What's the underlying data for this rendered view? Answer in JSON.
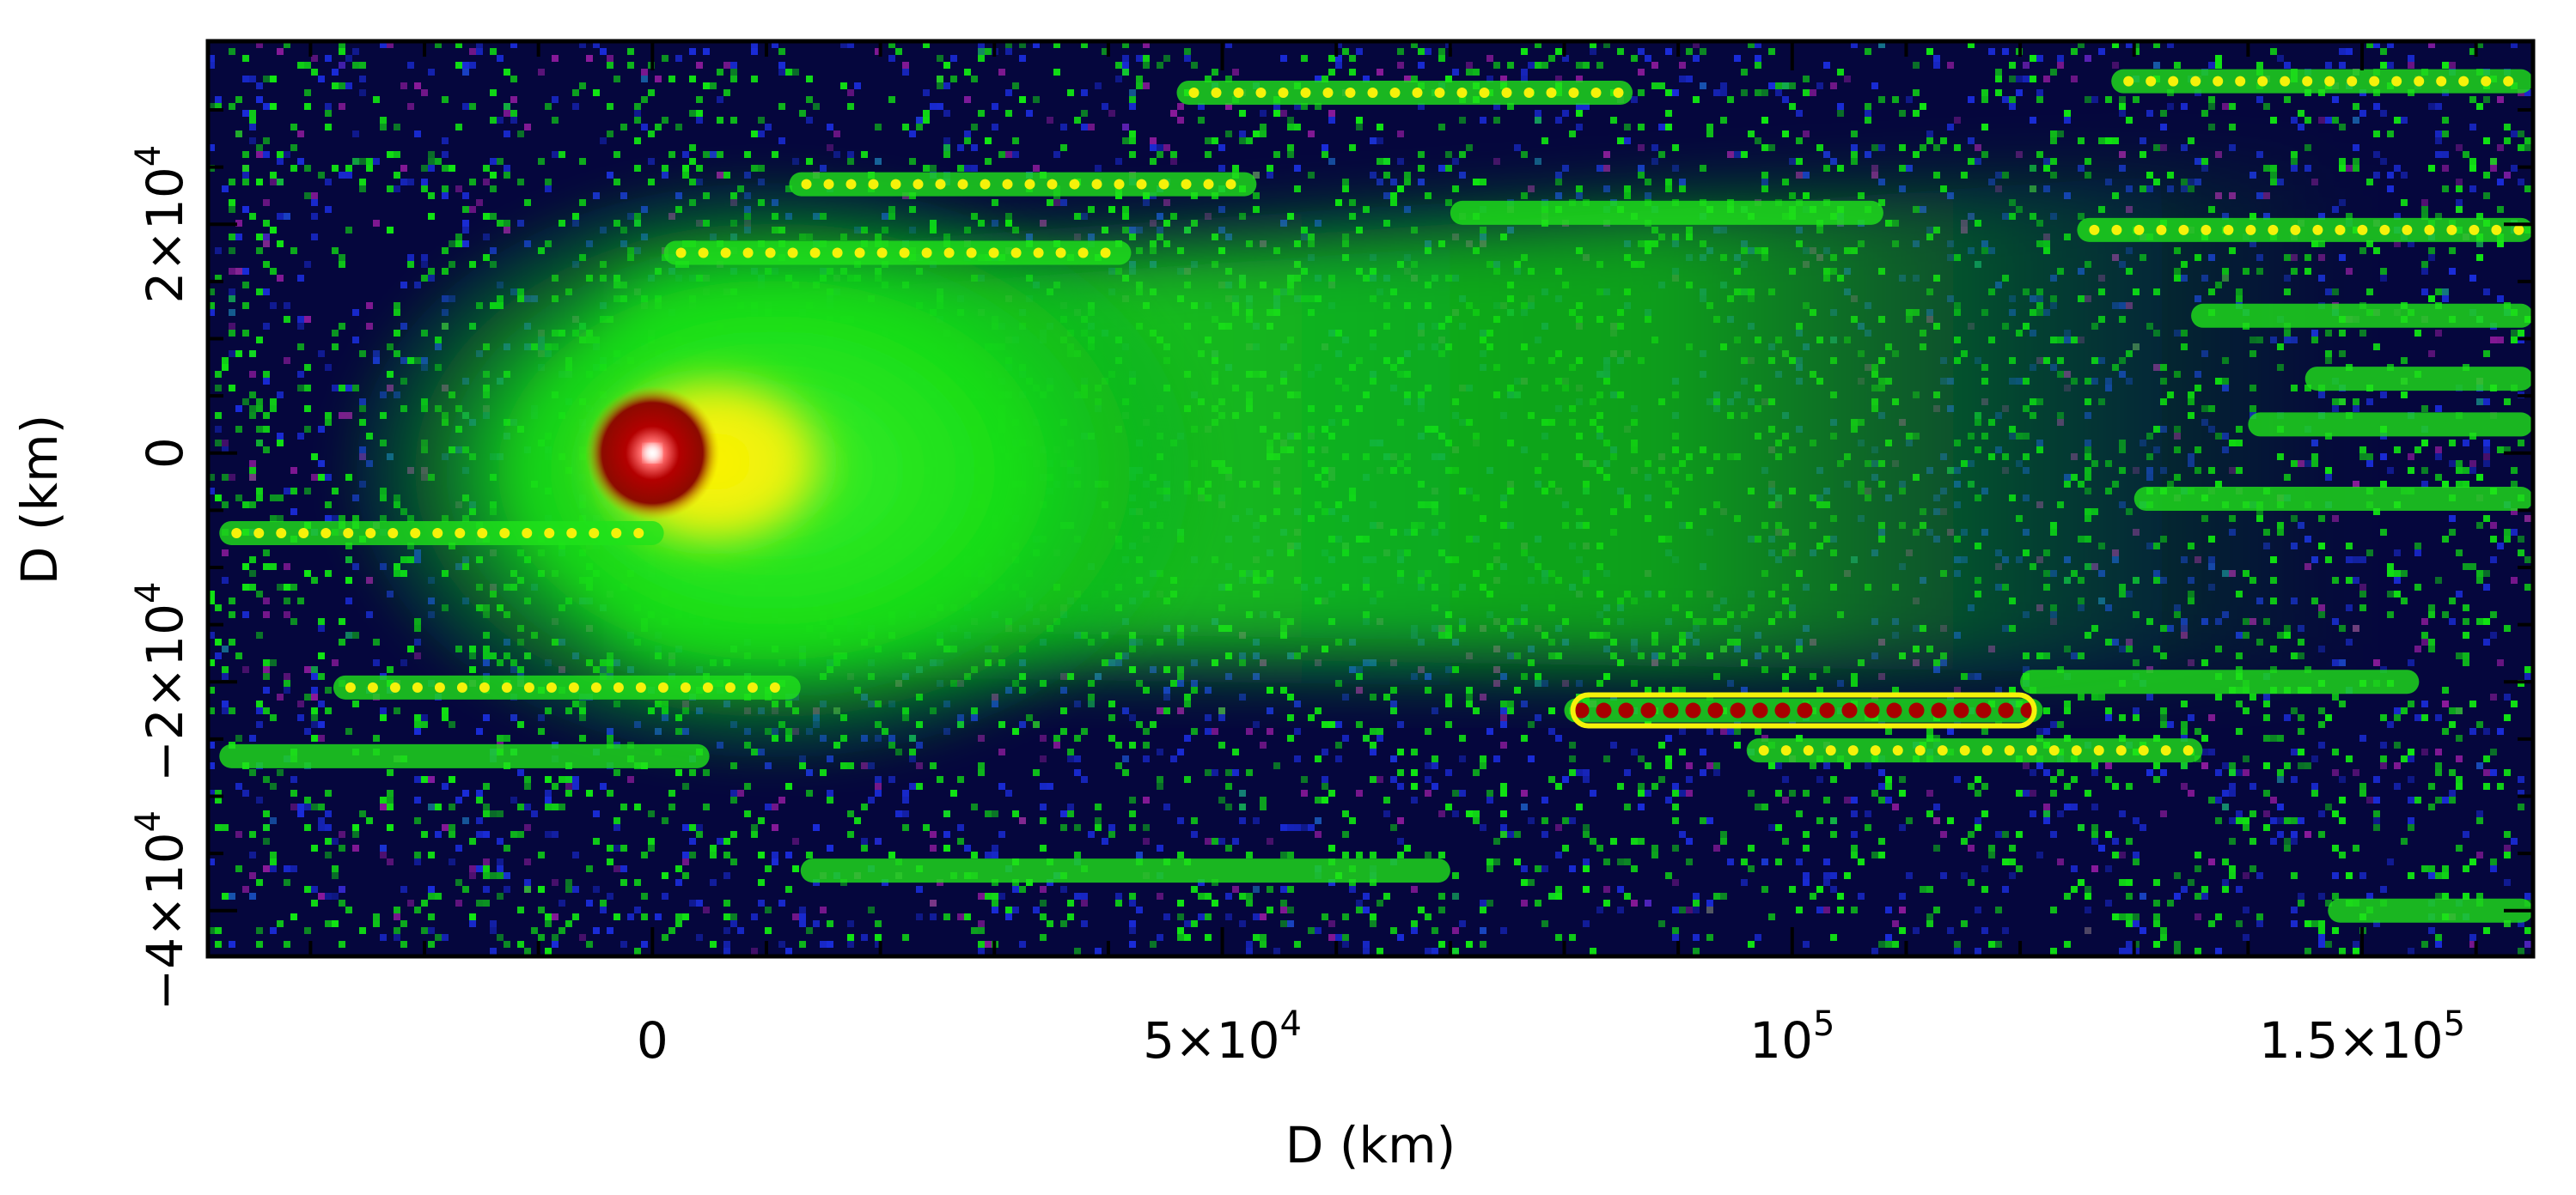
{
  "x_axis": {
    "title": "D (km)",
    "range_km": [
      -39000,
      165000
    ],
    "ticks": [
      {
        "value": 0,
        "label": "0"
      },
      {
        "value": 50000,
        "label": "5×10",
        "exp": "4"
      },
      {
        "value": 100000,
        "label": "10",
        "exp": "5"
      },
      {
        "value": 150000,
        "label": "1.5×10",
        "exp": "5"
      }
    ]
  },
  "y_axis": {
    "title": "D (km)",
    "range_km": [
      -44000,
      36000
    ],
    "ticks": [
      {
        "value": 20000,
        "label": "2×10",
        "exp": "4"
      },
      {
        "value": 0,
        "label": "0"
      },
      {
        "value": -20000,
        "label": "−2×10",
        "exp": "4"
      },
      {
        "value": -40000,
        "label": "−4×10",
        "exp": "4"
      }
    ]
  },
  "colors": {
    "sky": "#05063d",
    "coma": "#11e612",
    "inner_coma": "#f5f20a",
    "nucleus": "#a80000",
    "core": "#ffffff",
    "noise_blue": "#1a2cd8",
    "noise_purple": "#8a1a9a"
  }
}
